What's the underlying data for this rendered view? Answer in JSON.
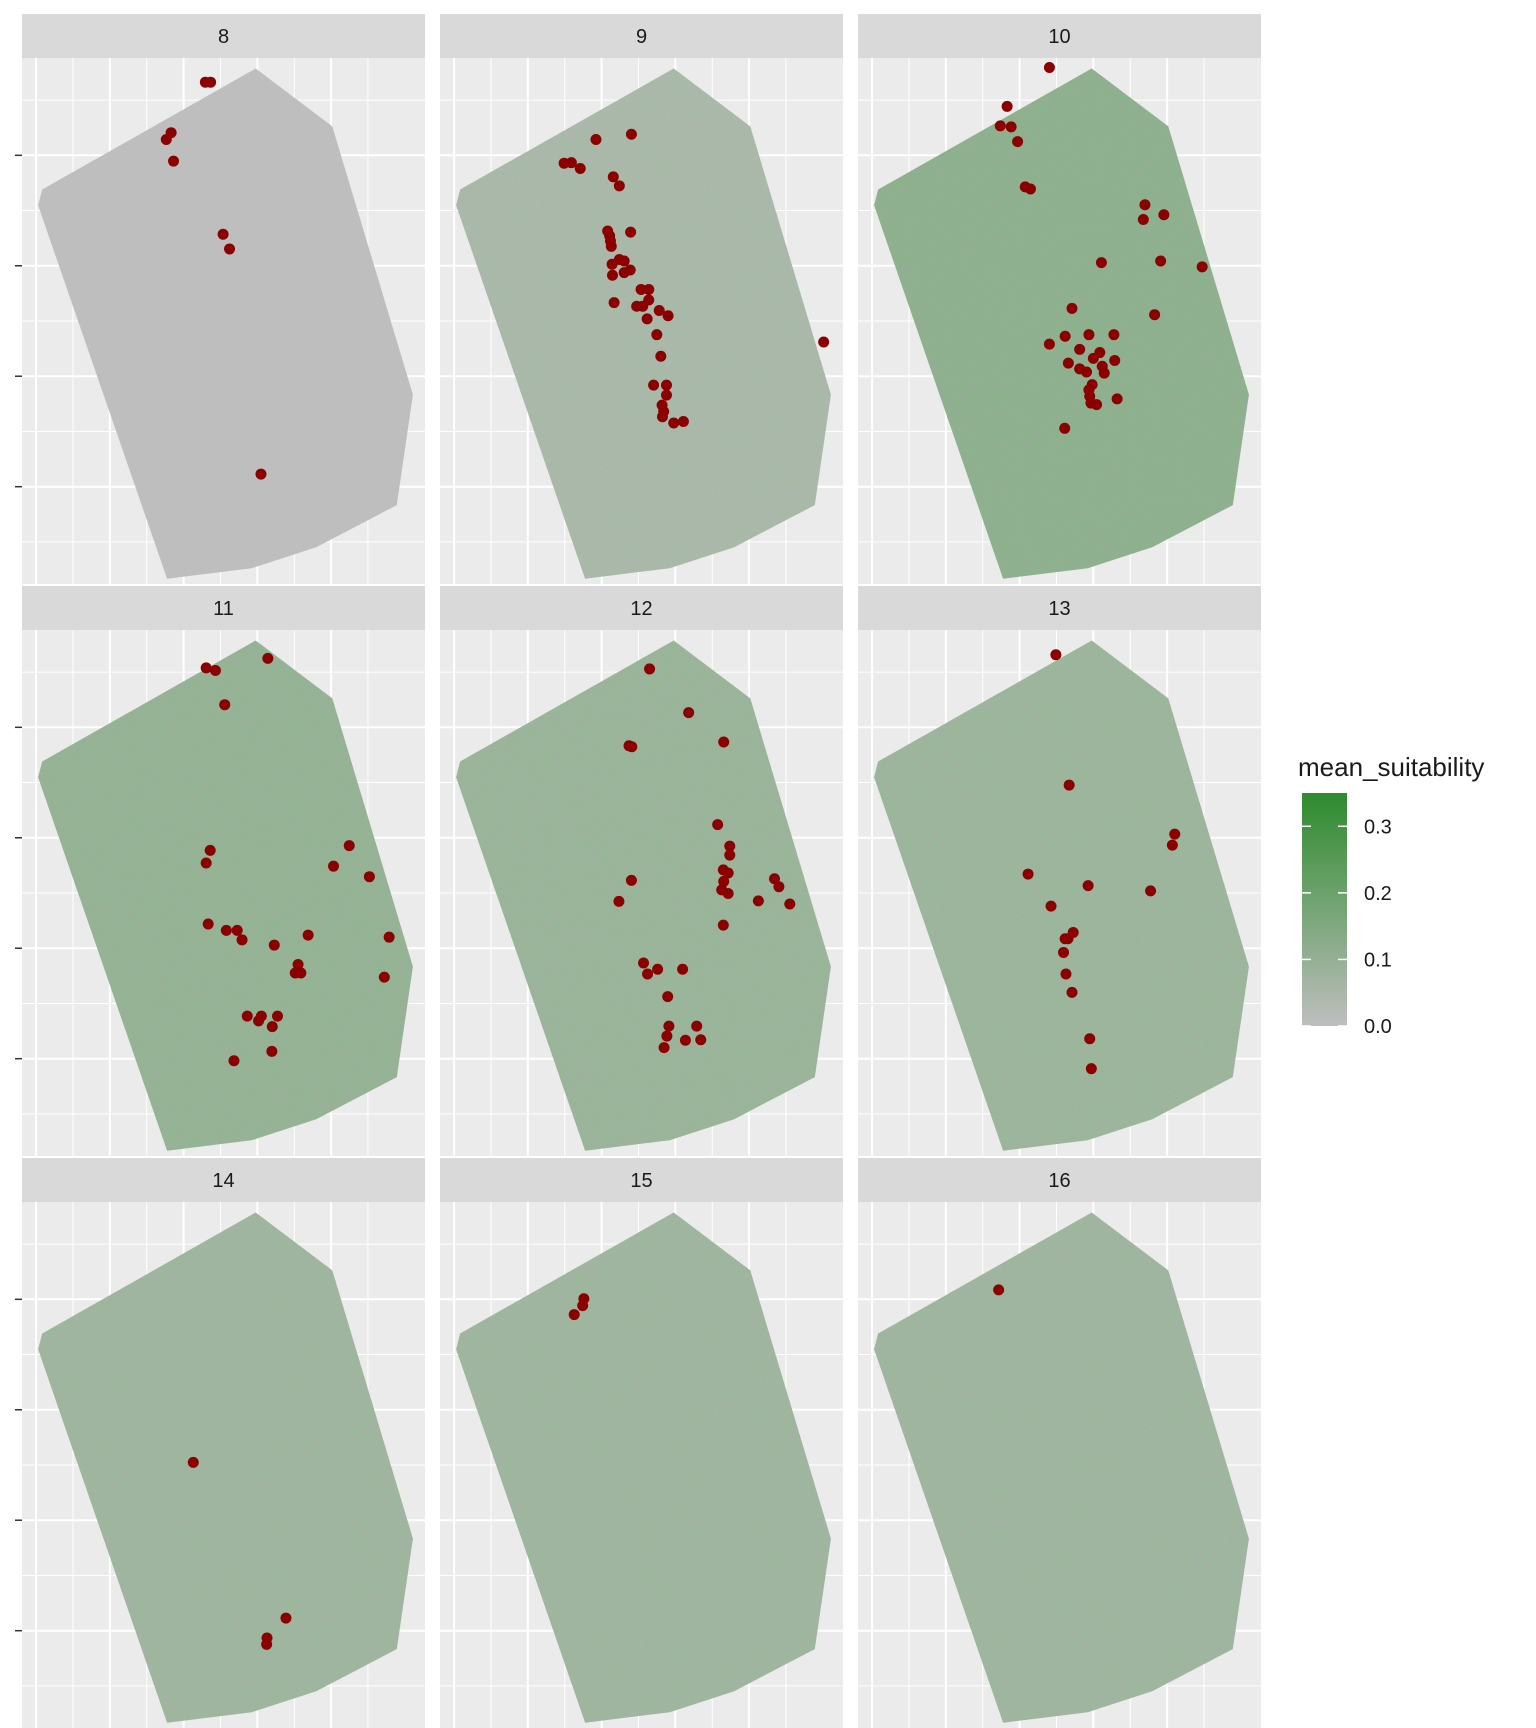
{
  "chart_data": {
    "type": "faceted raster map with scatter points",
    "layout": {
      "rows": 3,
      "cols": 3,
      "free_scales": false
    },
    "axis_tick_labels": "hidden",
    "x_ticks_count": 5,
    "y_ticks_count": 4,
    "panel_background": "#EBEBEB",
    "strip_background": "#D9D9D9",
    "point_color": "#8B0000",
    "legend": {
      "title": "mean_suitability",
      "position": "right",
      "limits": [
        0.0,
        0.35
      ],
      "breaks": [
        0.0,
        0.1,
        0.2,
        0.3
      ],
      "break_labels": [
        "0.0",
        "0.1",
        "0.2",
        "0.3"
      ],
      "low_color": "#BEBEBE",
      "high_color": "#2E8B2E"
    },
    "facets": [
      {
        "label": "8",
        "suitability_level": 0.0,
        "points": [
          [
            0.455,
            0.046
          ],
          [
            0.468,
            0.046
          ],
          [
            0.37,
            0.142
          ],
          [
            0.358,
            0.155
          ],
          [
            0.376,
            0.196
          ],
          [
            0.499,
            0.335
          ],
          [
            0.515,
            0.363
          ],
          [
            0.593,
            0.791
          ]
        ]
      },
      {
        "label": "9",
        "suitability_level": 0.07,
        "points": [
          [
            0.475,
            0.145
          ],
          [
            0.387,
            0.155
          ],
          [
            0.308,
            0.2
          ],
          [
            0.326,
            0.199
          ],
          [
            0.348,
            0.21
          ],
          [
            0.43,
            0.226
          ],
          [
            0.445,
            0.243
          ],
          [
            0.416,
            0.329
          ],
          [
            0.421,
            0.338
          ],
          [
            0.473,
            0.331
          ],
          [
            0.423,
            0.348
          ],
          [
            0.425,
            0.358
          ],
          [
            0.445,
            0.383
          ],
          [
            0.457,
            0.386
          ],
          [
            0.427,
            0.392
          ],
          [
            0.472,
            0.403
          ],
          [
            0.428,
            0.413
          ],
          [
            0.457,
            0.408
          ],
          [
            0.499,
            0.44
          ],
          [
            0.518,
            0.44
          ],
          [
            0.518,
            0.46
          ],
          [
            0.488,
            0.472
          ],
          [
            0.503,
            0.472
          ],
          [
            0.432,
            0.465
          ],
          [
            0.514,
            0.496
          ],
          [
            0.544,
            0.48
          ],
          [
            0.566,
            0.49
          ],
          [
            0.538,
            0.526
          ],
          [
            0.548,
            0.567
          ],
          [
            0.562,
            0.622
          ],
          [
            0.53,
            0.622
          ],
          [
            0.562,
            0.641
          ],
          [
            0.551,
            0.66
          ],
          [
            0.555,
            0.672
          ],
          [
            0.552,
            0.682
          ],
          [
            0.604,
            0.691
          ],
          [
            0.58,
            0.694
          ],
          [
            0.952,
            0.54
          ]
        ]
      },
      {
        "label": "10",
        "suitability_level": 0.18,
        "points": [
          [
            0.475,
            0.018
          ],
          [
            0.37,
            0.092
          ],
          [
            0.353,
            0.129
          ],
          [
            0.38,
            0.131
          ],
          [
            0.396,
            0.159
          ],
          [
            0.415,
            0.245
          ],
          [
            0.428,
            0.249
          ],
          [
            0.712,
            0.279
          ],
          [
            0.759,
            0.298
          ],
          [
            0.708,
            0.307
          ],
          [
            0.604,
            0.389
          ],
          [
            0.751,
            0.386
          ],
          [
            0.854,
            0.397
          ],
          [
            0.736,
            0.488
          ],
          [
            0.531,
            0.476
          ],
          [
            0.514,
            0.529
          ],
          [
            0.573,
            0.526
          ],
          [
            0.635,
            0.526
          ],
          [
            0.475,
            0.544
          ],
          [
            0.55,
            0.554
          ],
          [
            0.584,
            0.571
          ],
          [
            0.522,
            0.58
          ],
          [
            0.55,
            0.591
          ],
          [
            0.567,
            0.597
          ],
          [
            0.6,
            0.56
          ],
          [
            0.606,
            0.586
          ],
          [
            0.637,
            0.575
          ],
          [
            0.611,
            0.599
          ],
          [
            0.581,
            0.621
          ],
          [
            0.573,
            0.631
          ],
          [
            0.575,
            0.643
          ],
          [
            0.578,
            0.656
          ],
          [
            0.643,
            0.648
          ],
          [
            0.592,
            0.659
          ],
          [
            0.513,
            0.704
          ]
        ]
      },
      {
        "label": "11",
        "suitability_level": 0.15,
        "points": [
          [
            0.61,
            0.054
          ],
          [
            0.457,
            0.072
          ],
          [
            0.48,
            0.077
          ],
          [
            0.503,
            0.142
          ],
          [
            0.812,
            0.41
          ],
          [
            0.467,
            0.419
          ],
          [
            0.457,
            0.443
          ],
          [
            0.773,
            0.449
          ],
          [
            0.862,
            0.469
          ],
          [
            0.462,
            0.559
          ],
          [
            0.507,
            0.571
          ],
          [
            0.534,
            0.571
          ],
          [
            0.546,
            0.589
          ],
          [
            0.626,
            0.599
          ],
          [
            0.71,
            0.58
          ],
          [
            0.911,
            0.584
          ],
          [
            0.685,
            0.636
          ],
          [
            0.678,
            0.652
          ],
          [
            0.692,
            0.652
          ],
          [
            0.899,
            0.66
          ],
          [
            0.559,
            0.734
          ],
          [
            0.594,
            0.734
          ],
          [
            0.634,
            0.734
          ],
          [
            0.621,
            0.754
          ],
          [
            0.587,
            0.743
          ],
          [
            0.62,
            0.801
          ],
          [
            0.526,
            0.819
          ]
        ]
      },
      {
        "label": "12",
        "suitability_level": 0.13,
        "points": [
          [
            0.52,
            0.074
          ],
          [
            0.617,
            0.157
          ],
          [
            0.469,
            0.22
          ],
          [
            0.476,
            0.222
          ],
          [
            0.704,
            0.213
          ],
          [
            0.689,
            0.37
          ],
          [
            0.719,
            0.411
          ],
          [
            0.719,
            0.428
          ],
          [
            0.475,
            0.476
          ],
          [
            0.444,
            0.516
          ],
          [
            0.703,
            0.456
          ],
          [
            0.715,
            0.462
          ],
          [
            0.704,
            0.478
          ],
          [
            0.699,
            0.494
          ],
          [
            0.715,
            0.501
          ],
          [
            0.83,
            0.473
          ],
          [
            0.841,
            0.488
          ],
          [
            0.79,
            0.515
          ],
          [
            0.868,
            0.521
          ],
          [
            0.703,
            0.561
          ],
          [
            0.505,
            0.633
          ],
          [
            0.54,
            0.645
          ],
          [
            0.515,
            0.654
          ],
          [
            0.602,
            0.645
          ],
          [
            0.565,
            0.697
          ],
          [
            0.568,
            0.753
          ],
          [
            0.563,
            0.772
          ],
          [
            0.609,
            0.78
          ],
          [
            0.637,
            0.753
          ],
          [
            0.647,
            0.779
          ],
          [
            0.556,
            0.794
          ]
        ]
      },
      {
        "label": "13",
        "suitability_level": 0.12,
        "points": [
          [
            0.491,
            0.047
          ],
          [
            0.524,
            0.295
          ],
          [
            0.786,
            0.388
          ],
          [
            0.78,
            0.409
          ],
          [
            0.422,
            0.464
          ],
          [
            0.571,
            0.486
          ],
          [
            0.726,
            0.496
          ],
          [
            0.479,
            0.525
          ],
          [
            0.534,
            0.575
          ],
          [
            0.514,
            0.587
          ],
          [
            0.521,
            0.587
          ],
          [
            0.51,
            0.613
          ],
          [
            0.516,
            0.654
          ],
          [
            0.531,
            0.689
          ],
          [
            0.575,
            0.777
          ],
          [
            0.579,
            0.834
          ]
        ]
      },
      {
        "label": "14",
        "suitability_level": 0.11,
        "points": [
          [
            0.425,
            0.495
          ],
          [
            0.655,
            0.791
          ],
          [
            0.608,
            0.829
          ],
          [
            0.607,
            0.841
          ]
        ]
      },
      {
        "label": "15",
        "suitability_level": 0.11,
        "points": [
          [
            0.357,
            0.184
          ],
          [
            0.354,
            0.197
          ],
          [
            0.333,
            0.214
          ]
        ]
      },
      {
        "label": "16",
        "suitability_level": 0.11,
        "points": [
          [
            0.349,
            0.167
          ]
        ]
      }
    ]
  }
}
